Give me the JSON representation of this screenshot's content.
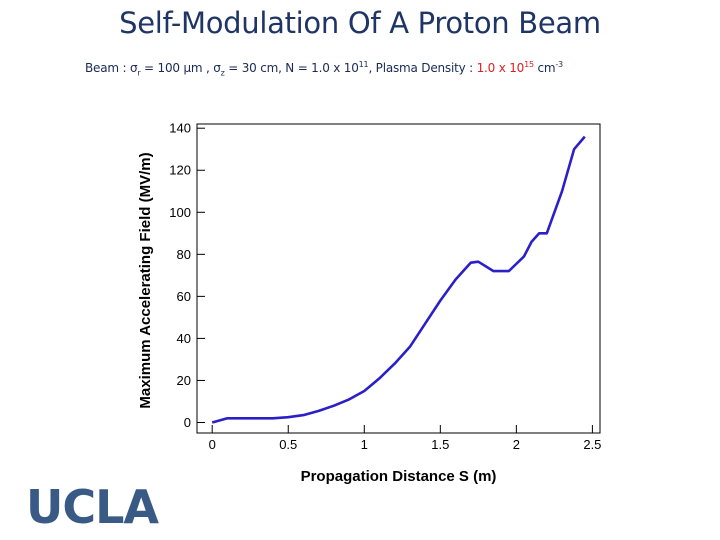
{
  "title": "Self-Modulation Of A Proton Beam",
  "subtitle": {
    "prefix": "Beam : ",
    "sigma_r_symbol": "σ",
    "sigma_r_sub": "r",
    "sigma_r_value": " = 100 μm , ",
    "sigma_z_symbol": "σ",
    "sigma_z_sub": "z",
    "sigma_z_value": " = 30 cm, N = 1.0 x 10",
    "n_exp": "11",
    "density_label": ", Plasma Density : ",
    "density_value": "1.0 x 10",
    "density_exp": "15",
    "density_unit": " cm",
    "density_unit_exp": "-3"
  },
  "logo": "UCLA",
  "colors": {
    "title": "#1f3566",
    "highlight": "#e02020",
    "series": "#2b1fc8",
    "logo": "#3a5a86"
  },
  "chart_data": {
    "type": "line",
    "title": "",
    "xlabel": "Propagation Distance S (m)",
    "ylabel": "Maximum Accelerating Field (MV/m)",
    "xlim": [
      -0.1,
      2.55
    ],
    "ylim": [
      -5,
      142
    ],
    "xticks": [
      0,
      0.5,
      1,
      1.5,
      2,
      2.5
    ],
    "xtick_labels": [
      "0",
      "0.5",
      "1",
      "1.5",
      "2",
      "2.5"
    ],
    "yticks": [
      0,
      20,
      40,
      60,
      80,
      100,
      120,
      140
    ],
    "ytick_labels": [
      "0",
      "20",
      "40",
      "60",
      "80",
      "100",
      "120",
      "140"
    ],
    "grid": false,
    "series": [
      {
        "name": "Maximum Accelerating Field",
        "x": [
          0,
          0.1,
          0.2,
          0.3,
          0.4,
          0.5,
          0.6,
          0.7,
          0.8,
          0.9,
          1.0,
          1.1,
          1.2,
          1.3,
          1.4,
          1.5,
          1.6,
          1.7,
          1.75,
          1.85,
          1.95,
          2.05,
          2.1,
          2.15,
          2.2,
          2.3,
          2.38,
          2.45
        ],
        "y": [
          0,
          2,
          2,
          2,
          2,
          2.5,
          3.5,
          5.5,
          8,
          11,
          15,
          21,
          28,
          36,
          47,
          58,
          68,
          76,
          76.5,
          72,
          72,
          79,
          86,
          90,
          90,
          110,
          130,
          136
        ]
      }
    ]
  }
}
